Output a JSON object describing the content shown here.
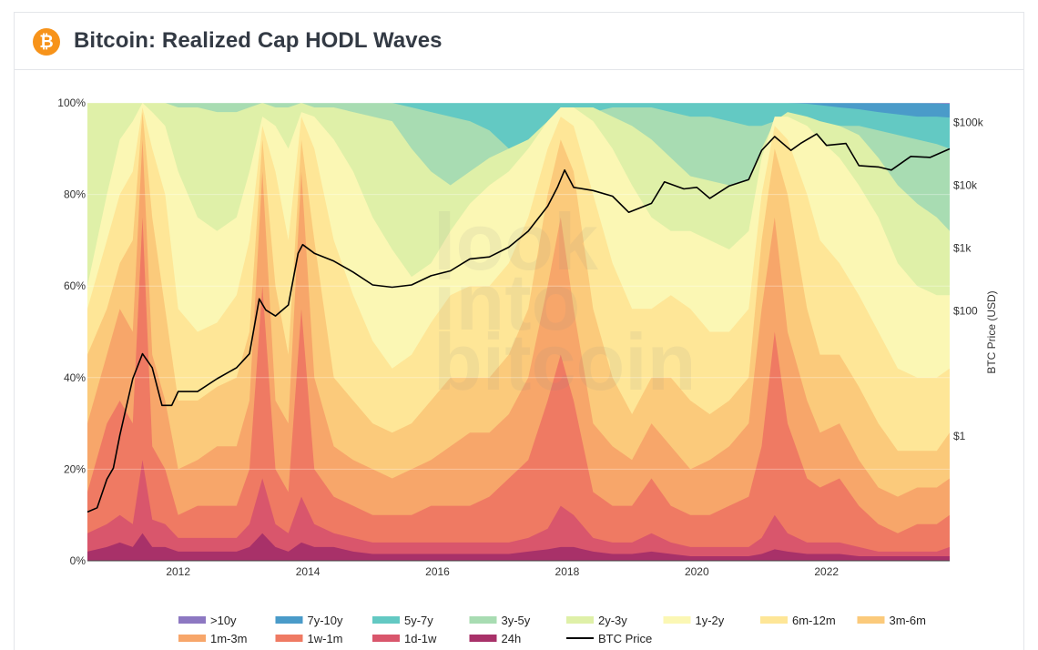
{
  "header": {
    "title": "Bitcoin: Realized Cap HODL Waves",
    "logo_symbol": "₿"
  },
  "watermark": [
    "look",
    "into",
    "bitcoin"
  ],
  "chart_data": {
    "type": "area",
    "title": "Bitcoin: Realized Cap HODL Waves",
    "x_range": [
      2010.6,
      2023.9
    ],
    "x_ticks": [
      {
        "value": 2012,
        "label": "2012"
      },
      {
        "value": 2014,
        "label": "2014"
      },
      {
        "value": 2016,
        "label": "2016"
      },
      {
        "value": 2018,
        "label": "2018"
      },
      {
        "value": 2020,
        "label": "2020"
      },
      {
        "value": 2022,
        "label": "2022"
      }
    ],
    "y_left": {
      "range": [
        0,
        100
      ],
      "ticks": [
        0,
        20,
        40,
        60,
        80,
        100
      ],
      "tick_labels": [
        "0%",
        "20%",
        "40%",
        "60%",
        "80%",
        "100%"
      ]
    },
    "y_right": {
      "label": "BTC Price (USD)",
      "scale": "log",
      "range": [
        0.01,
        200000
      ],
      "ticks": [
        1,
        100,
        1000,
        10000,
        100000
      ],
      "tick_labels": [
        "$1",
        "$100",
        "$1k",
        "$10k",
        "$100k"
      ]
    },
    "x": [
      2010.6,
      2010.9,
      2011.1,
      2011.3,
      2011.45,
      2011.6,
      2011.8,
      2012.0,
      2012.3,
      2012.6,
      2012.9,
      2013.1,
      2013.3,
      2013.5,
      2013.7,
      2013.9,
      2014.1,
      2014.4,
      2014.7,
      2015.0,
      2015.3,
      2015.6,
      2015.9,
      2016.2,
      2016.5,
      2016.8,
      2017.1,
      2017.4,
      2017.7,
      2017.9,
      2018.1,
      2018.4,
      2018.7,
      2019.0,
      2019.3,
      2019.6,
      2019.9,
      2020.2,
      2020.5,
      2020.8,
      2021.0,
      2021.2,
      2021.4,
      2021.7,
      2021.9,
      2022.2,
      2022.5,
      2022.8,
      2023.1,
      2023.4,
      2023.7,
      2023.9
    ],
    "series": [
      {
        "name": "24h",
        "color": "#a83169",
        "values": [
          2,
          3,
          4,
          3,
          6,
          3,
          3,
          2,
          2,
          2,
          2,
          3,
          6,
          3,
          2,
          4,
          3,
          3,
          2,
          1.5,
          1.5,
          1.5,
          1.5,
          1.5,
          1.5,
          1.5,
          1.5,
          2,
          2.5,
          3,
          3,
          2,
          1.5,
          1.5,
          2,
          1.5,
          1,
          1,
          1,
          1,
          1.5,
          2.5,
          2,
          1.5,
          1.5,
          1.5,
          1,
          1,
          1,
          1,
          1,
          1
        ]
      },
      {
        "name": "1d-1w",
        "color": "#d9566c",
        "values": [
          6,
          8,
          10,
          8,
          22,
          9,
          8,
          5,
          5,
          5,
          5,
          8,
          18,
          8,
          6,
          14,
          8,
          6,
          5,
          4,
          4,
          4,
          4,
          4,
          4,
          4,
          4,
          5,
          7,
          12,
          10,
          5,
          4,
          4,
          6,
          4,
          3,
          3,
          3,
          3,
          5,
          10,
          6,
          4,
          4,
          4,
          3,
          2,
          2,
          2,
          2,
          3
        ]
      },
      {
        "name": "1w-1m",
        "color": "#ef7a63",
        "values": [
          15,
          30,
          35,
          30,
          75,
          25,
          20,
          10,
          12,
          12,
          12,
          20,
          60,
          20,
          15,
          55,
          20,
          14,
          12,
          10,
          10,
          10,
          12,
          12,
          12,
          14,
          18,
          22,
          35,
          45,
          35,
          15,
          12,
          12,
          18,
          12,
          10,
          10,
          12,
          14,
          25,
          50,
          30,
          18,
          16,
          18,
          12,
          8,
          6,
          8,
          8,
          10
        ]
      },
      {
        "name": "1m-3m",
        "color": "#f7a66a",
        "values": [
          30,
          45,
          55,
          50,
          92,
          45,
          35,
          20,
          22,
          25,
          25,
          35,
          85,
          35,
          30,
          85,
          40,
          25,
          22,
          20,
          18,
          20,
          22,
          25,
          28,
          28,
          32,
          40,
          60,
          75,
          55,
          30,
          25,
          22,
          30,
          25,
          20,
          22,
          25,
          30,
          55,
          75,
          50,
          35,
          28,
          30,
          22,
          16,
          14,
          16,
          16,
          18
        ]
      },
      {
        "name": "3m-6m",
        "color": "#fbca7b",
        "values": [
          45,
          55,
          65,
          70,
          98,
          75,
          55,
          35,
          35,
          38,
          40,
          50,
          92,
          60,
          45,
          92,
          70,
          40,
          35,
          30,
          28,
          30,
          35,
          40,
          40,
          40,
          45,
          55,
          80,
          92,
          85,
          55,
          40,
          32,
          40,
          40,
          35,
          32,
          35,
          40,
          70,
          90,
          80,
          55,
          45,
          45,
          38,
          30,
          24,
          24,
          24,
          28
        ]
      },
      {
        "name": "6m-12m",
        "color": "#fee697",
        "values": [
          55,
          70,
          80,
          85,
          99,
          90,
          80,
          55,
          50,
          52,
          58,
          70,
          95,
          85,
          70,
          97,
          90,
          70,
          58,
          48,
          42,
          45,
          52,
          58,
          60,
          60,
          65,
          75,
          90,
          97,
          95,
          80,
          65,
          55,
          55,
          58,
          55,
          50,
          50,
          55,
          80,
          95,
          92,
          80,
          70,
          65,
          58,
          50,
          42,
          40,
          40,
          42
        ]
      },
      {
        "name": "1y-2y",
        "color": "#fbf7b4",
        "values": [
          60,
          80,
          92,
          96,
          100,
          98,
          95,
          85,
          75,
          72,
          75,
          85,
          97,
          95,
          90,
          98,
          97,
          92,
          85,
          75,
          68,
          62,
          65,
          72,
          78,
          82,
          85,
          90,
          96,
          99,
          99,
          96,
          90,
          82,
          75,
          72,
          72,
          70,
          68,
          72,
          88,
          97,
          97,
          95,
          92,
          88,
          82,
          75,
          65,
          60,
          58,
          58
        ]
      },
      {
        "name": "2y-3y",
        "color": "#dff0a8",
        "values": [
          100,
          100,
          100,
          100,
          100,
          100,
          100,
          99,
          99,
          98,
          98,
          99,
          100,
          99,
          99,
          100,
          99,
          99,
          98,
          97,
          96,
          90,
          85,
          82,
          85,
          88,
          90,
          92,
          96,
          99,
          99,
          99,
          97,
          95,
          92,
          88,
          84,
          83,
          82,
          83,
          90,
          96,
          98,
          97,
          96,
          95,
          93,
          88,
          82,
          78,
          75,
          72
        ]
      },
      {
        "name": "3y-5y",
        "color": "#a8dcb2",
        "values": [
          100,
          100,
          100,
          100,
          100,
          100,
          100,
          100,
          100,
          100,
          100,
          100,
          100,
          100,
          100,
          100,
          100,
          100,
          100,
          100,
          100,
          99,
          98,
          97,
          96,
          94,
          90,
          87,
          90,
          95,
          97,
          98,
          99,
          99,
          99,
          98,
          97,
          97,
          96,
          95,
          95,
          96,
          96,
          95,
          95,
          95,
          95,
          94,
          93,
          92,
          91,
          90
        ]
      },
      {
        "name": "5y-7y",
        "color": "#63c9c3",
        "values": [
          100,
          100,
          100,
          100,
          100,
          100,
          100,
          100,
          100,
          100,
          100,
          100,
          100,
          100,
          100,
          100,
          100,
          100,
          100,
          100,
          100,
          100,
          100,
          100,
          100,
          100,
          100,
          100,
          100,
          100,
          100,
          100,
          100,
          100,
          100,
          100,
          100,
          100,
          100,
          100,
          100,
          100,
          100,
          99.8,
          99.5,
          99,
          98.6,
          98,
          97.5,
          97,
          97,
          96.8
        ]
      },
      {
        "name": "7y-10y",
        "color": "#4a9bc9",
        "values": [
          100,
          100,
          100,
          100,
          100,
          100,
          100,
          100,
          100,
          100,
          100,
          100,
          100,
          100,
          100,
          100,
          100,
          100,
          100,
          100,
          100,
          100,
          100,
          100,
          100,
          100,
          100,
          100,
          100,
          100,
          100,
          100,
          100,
          100,
          100,
          100,
          100,
          100,
          100,
          100,
          100,
          100,
          100,
          100,
          100,
          100,
          100,
          100,
          100,
          100,
          99.9,
          99.8
        ]
      },
      {
        "name": ">10y",
        "color": "#8d78c2",
        "values": [
          100,
          100,
          100,
          100,
          100,
          100,
          100,
          100,
          100,
          100,
          100,
          100,
          100,
          100,
          100,
          100,
          100,
          100,
          100,
          100,
          100,
          100,
          100,
          100,
          100,
          100,
          100,
          100,
          100,
          100,
          100,
          100,
          100,
          100,
          100,
          100,
          100,
          100,
          100,
          100,
          100,
          100,
          100,
          100,
          100,
          100,
          100,
          100,
          100,
          100,
          100,
          100
        ]
      }
    ],
    "btc_price": {
      "name": "BTC Price",
      "color": "#000000",
      "x": [
        2010.6,
        2010.75,
        2010.9,
        2011.0,
        2011.1,
        2011.3,
        2011.45,
        2011.6,
        2011.75,
        2011.9,
        2012.0,
        2012.3,
        2012.6,
        2012.9,
        2013.1,
        2013.25,
        2013.35,
        2013.5,
        2013.7,
        2013.85,
        2013.92,
        2014.1,
        2014.4,
        2014.7,
        2015.0,
        2015.3,
        2015.6,
        2015.9,
        2016.2,
        2016.5,
        2016.8,
        2017.1,
        2017.4,
        2017.7,
        2017.85,
        2017.96,
        2018.1,
        2018.4,
        2018.7,
        2018.95,
        2019.3,
        2019.5,
        2019.8,
        2020.0,
        2020.2,
        2020.5,
        2020.8,
        2021.0,
        2021.2,
        2021.45,
        2021.6,
        2021.85,
        2022.0,
        2022.3,
        2022.5,
        2022.8,
        2023.0,
        2023.3,
        2023.6,
        2023.9
      ],
      "y": [
        0.06,
        0.07,
        0.2,
        0.3,
        1,
        8,
        20,
        12,
        3,
        3,
        5,
        5,
        8,
        12,
        20,
        150,
        100,
        80,
        120,
        800,
        1100,
        800,
        600,
        400,
        250,
        230,
        250,
        350,
        420,
        650,
        700,
        1000,
        1800,
        4500,
        9000,
        17000,
        9000,
        8000,
        6500,
        3600,
        5000,
        11000,
        8500,
        9000,
        6000,
        9500,
        12000,
        35000,
        58000,
        35000,
        45000,
        64000,
        42000,
        45000,
        20000,
        19000,
        17000,
        28000,
        27000,
        37000
      ]
    },
    "legend": [
      ">10y",
      "7y-10y",
      "5y-7y",
      "3y-5y",
      "2y-3y",
      "1y-2y",
      "6m-12m",
      "3m-6m",
      "1m-3m",
      "1w-1m",
      "1d-1w",
      "24h",
      "BTC Price"
    ]
  }
}
